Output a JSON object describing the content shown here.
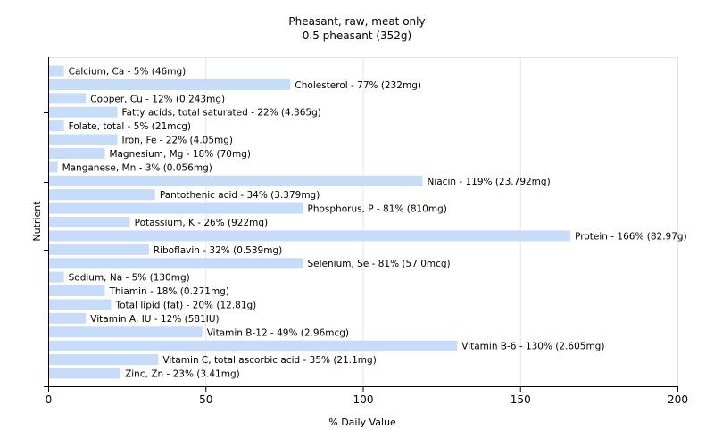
{
  "chart_data": {
    "type": "bar",
    "orientation": "horizontal",
    "title": "Pheasant, raw, meat only",
    "subtitle": "0.5 pheasant (352g)",
    "xlabel": "% Daily Value",
    "ylabel": "Nutrient",
    "xlim": [
      0,
      200
    ],
    "xticks": [
      "0",
      "50",
      "100",
      "150",
      "200"
    ],
    "grid": true,
    "bar_color": "#c6dcf8",
    "categories": [
      "Calcium, Ca",
      "Cholesterol",
      "Copper, Cu",
      "Fatty acids, total saturated",
      "Folate, total",
      "Iron, Fe",
      "Magnesium, Mg",
      "Manganese, Mn",
      "Niacin",
      "Pantothenic acid",
      "Phosphorus, P",
      "Potassium, K",
      "Protein",
      "Riboflavin",
      "Selenium, Se",
      "Sodium, Na",
      "Thiamin",
      "Total lipid (fat)",
      "Vitamin A, IU",
      "Vitamin B-12",
      "Vitamin B-6",
      "Vitamin C, total ascorbic acid",
      "Zinc, Zn"
    ],
    "values": [
      5,
      77,
      12,
      22,
      5,
      22,
      18,
      3,
      119,
      34,
      81,
      26,
      166,
      32,
      81,
      5,
      18,
      20,
      12,
      49,
      130,
      35,
      23
    ],
    "labels": [
      "Calcium, Ca - 5% (46mg)",
      "Cholesterol - 77% (232mg)",
      "Copper, Cu - 12% (0.243mg)",
      "Fatty acids, total saturated - 22% (4.365g)",
      "Folate, total - 5% (21mcg)",
      "Iron, Fe - 22% (4.05mg)",
      "Magnesium, Mg - 18% (70mg)",
      "Manganese, Mn - 3% (0.056mg)",
      "Niacin - 119% (23.792mg)",
      "Pantothenic acid - 34% (3.379mg)",
      "Phosphorus, P - 81% (810mg)",
      "Potassium, K - 26% (922mg)",
      "Protein - 166% (82.97g)",
      "Riboflavin - 32% (0.539mg)",
      "Selenium, Se - 81% (57.0mcg)",
      "Sodium, Na - 5% (130mg)",
      "Thiamin - 18% (0.271mg)",
      "Total lipid (fat) - 20% (12.81g)",
      "Vitamin A, IU - 12% (581IU)",
      "Vitamin B-12 - 49% (2.96mcg)",
      "Vitamin B-6 - 130% (2.605mg)",
      "Vitamin C, total ascorbic acid - 35% (21.1mg)",
      "Zinc, Zn - 23% (3.41mg)"
    ]
  }
}
